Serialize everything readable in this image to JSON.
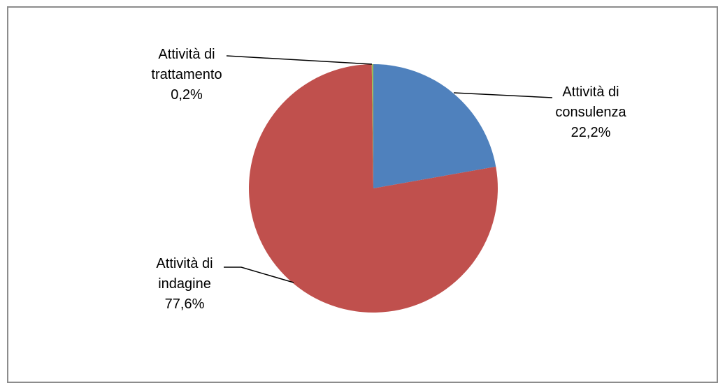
{
  "chart_data": {
    "type": "pie",
    "slices": [
      {
        "label_lines": [
          "Attività di",
          "consulenza"
        ],
        "pct_label": "22,2%",
        "value": 22.2,
        "color": "#4f81bd"
      },
      {
        "label_lines": [
          "Attività di",
          "indagine"
        ],
        "pct_label": "77,6%",
        "value": 77.6,
        "color": "#c0504d"
      },
      {
        "label_lines": [
          "Attività di",
          "trattamento"
        ],
        "pct_label": "0,2%",
        "value": 0.2,
        "color": "#9bbb59"
      }
    ],
    "legend": "none",
    "start_angle_deg": 0
  }
}
